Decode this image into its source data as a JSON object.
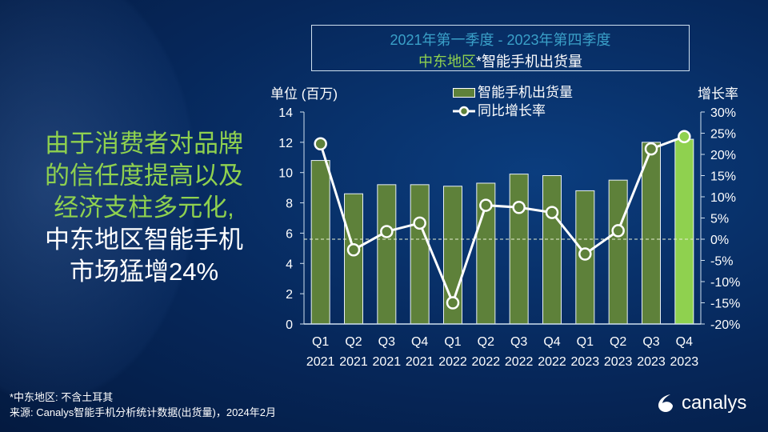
{
  "headline": {
    "line1": "由于消费者对品牌",
    "line2": "的信任度提高以及",
    "line3": "经济支柱多元化,",
    "line4": "中东地区智能手机",
    "line5": "市场猛增24%"
  },
  "title": {
    "period": "2021年第一季度 - 2023年第四季度",
    "region": "中东地区",
    "rest": "*智能手机出货量"
  },
  "footer": {
    "note": "*中东地区: 不含土耳其",
    "source": "来源: Canalys智能手机分析统计数据(出货量)，2024年2月"
  },
  "logo": {
    "text": "canalys"
  },
  "colors": {
    "bar": "#5e813a",
    "bar_highlight": "#8fd14f",
    "line": "#ffffff",
    "marker": "#5e813a",
    "period_title": "#3aa0c8"
  },
  "chart_data": {
    "type": "bar+line",
    "categories": [
      "Q1 2021",
      "Q2 2021",
      "Q3 2021",
      "Q4 2021",
      "Q1 2022",
      "Q2 2022",
      "Q3 2022",
      "Q4 2022",
      "Q1 2023",
      "Q2 2023",
      "Q3 2023",
      "Q4 2023"
    ],
    "category_quarters": [
      "Q1",
      "Q2",
      "Q3",
      "Q4",
      "Q1",
      "Q2",
      "Q3",
      "Q4",
      "Q1",
      "Q2",
      "Q3",
      "Q4"
    ],
    "category_years": [
      "2021",
      "2021",
      "2021",
      "2021",
      "2022",
      "2022",
      "2022",
      "2022",
      "2023",
      "2023",
      "2023",
      "2023"
    ],
    "series": [
      {
        "name": "智能手机出货量",
        "axis": "left",
        "type": "bar",
        "values": [
          10.8,
          8.6,
          9.2,
          9.2,
          9.1,
          9.3,
          9.9,
          9.8,
          8.8,
          9.5,
          12.0,
          12.2
        ]
      },
      {
        "name": "同比增长率",
        "axis": "right",
        "type": "line",
        "values": [
          22.5,
          -2.5,
          1.8,
          3.8,
          -15.0,
          8.0,
          7.5,
          6.3,
          -3.5,
          2.0,
          21.3,
          24.2
        ]
      }
    ],
    "ylabel": "单位 (百万)",
    "y2label": "增长率",
    "ylim": [
      0,
      14
    ],
    "yticks": [
      "0",
      "2",
      "4",
      "6",
      "8",
      "10",
      "12",
      "14"
    ],
    "y2lim": [
      -20,
      30
    ],
    "y2ticks": [
      "-20%",
      "-15%",
      "-10%",
      "-5%",
      "0%",
      "5%",
      "10%",
      "15%",
      "20%",
      "25%",
      "30%"
    ],
    "highlight_index": 11,
    "zero_line": "dashed",
    "legend": "top-center"
  }
}
